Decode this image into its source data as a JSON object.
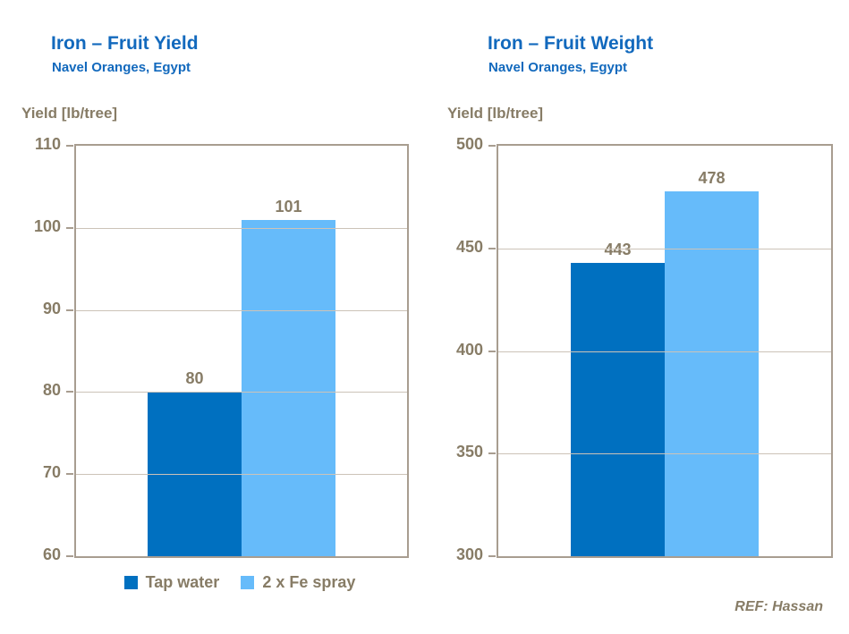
{
  "chart_data": [
    {
      "type": "bar",
      "title": "Iron – Fruit Yield",
      "subtitle": "Navel Oranges, Egypt",
      "ylabel": "Yield [lb/tree]",
      "categories": [
        "Tap water",
        "2 x Fe spray"
      ],
      "values": [
        80,
        101
      ],
      "ylim": [
        60,
        110
      ],
      "ytick_step": 10,
      "grid": true,
      "legend_position": "bottom",
      "show_legend": true
    },
    {
      "type": "bar",
      "title": "Iron – Fruit Weight",
      "subtitle": "Navel Oranges, Egypt",
      "ylabel": "Yield [lb/tree]",
      "categories": [
        "Tap water",
        "2 x Fe spray"
      ],
      "values": [
        443,
        478
      ],
      "ylim": [
        300,
        500
      ],
      "ytick_step": 50,
      "grid": true,
      "show_legend": false
    }
  ],
  "legend": {
    "items": [
      {
        "label": "Tap water"
      },
      {
        "label": "2 x Fe spray"
      }
    ]
  },
  "ref_text": "REF: Hassan",
  "colors": {
    "series": [
      "#0070C0",
      "#66BBFA"
    ],
    "ui": {
      "title": "#1269BD",
      "text": "#877C66",
      "axis": "#A89D90",
      "grid": "#CCC3B8"
    }
  }
}
